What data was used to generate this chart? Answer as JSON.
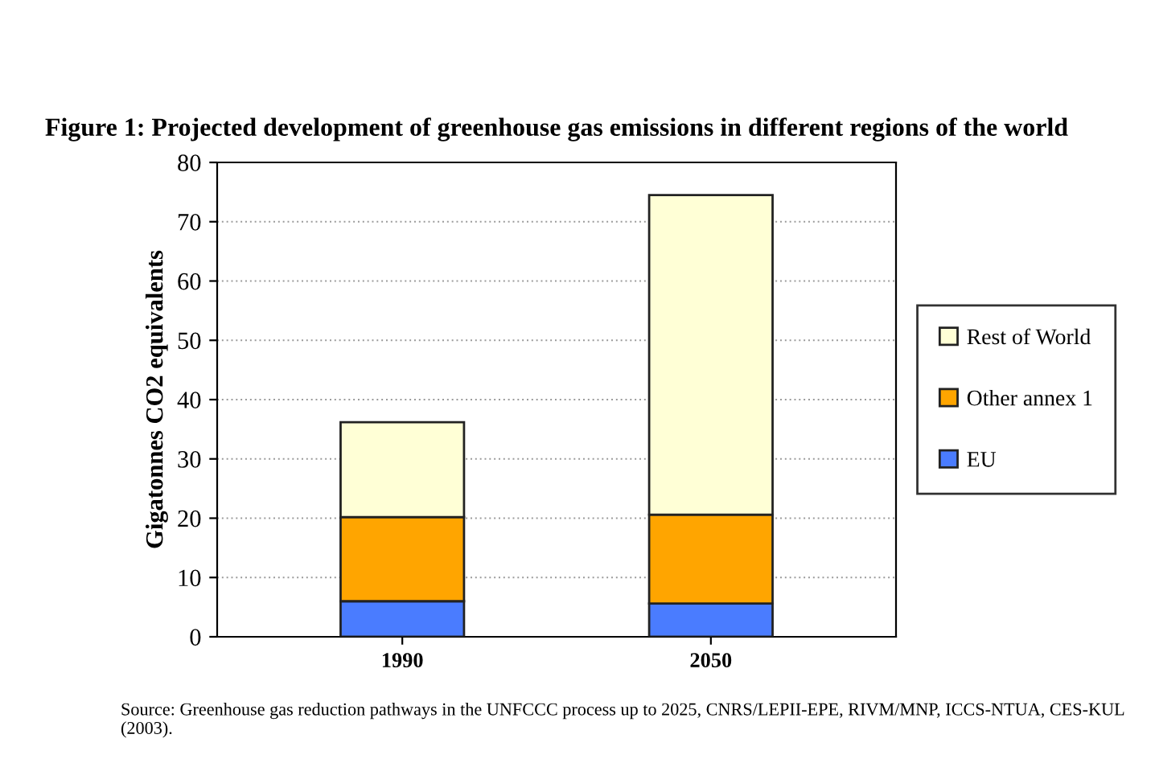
{
  "chart_data": {
    "type": "bar",
    "stacked": true,
    "title": "Figure 1: Projected development of greenhouse gas emissions in different regions of the world",
    "ylabel": "Gigatonnes CO2 equivalents",
    "categories": [
      "1990",
      "2050"
    ],
    "series": [
      {
        "name": "EU",
        "color": "#4a7cff",
        "values": [
          6.0,
          5.6
        ]
      },
      {
        "name": "Other annex 1",
        "color": "#ffa500",
        "values": [
          14.2,
          15.0
        ]
      },
      {
        "name": "Rest of World",
        "color": "#ffffd6",
        "values": [
          16.0,
          53.9
        ]
      }
    ],
    "ylim": [
      0,
      80
    ],
    "yticks": [
      0,
      10,
      20,
      30,
      40,
      50,
      60,
      70,
      80
    ],
    "grid": "y",
    "legend": "right",
    "annotations": [
      "Source: Greenhouse gas reduction pathways in the UNFCCC process up to 2025, CNRS/LEPII-EPE, RIVM/MNP, ICCS-NTUA, CES-KUL (2003)."
    ]
  }
}
